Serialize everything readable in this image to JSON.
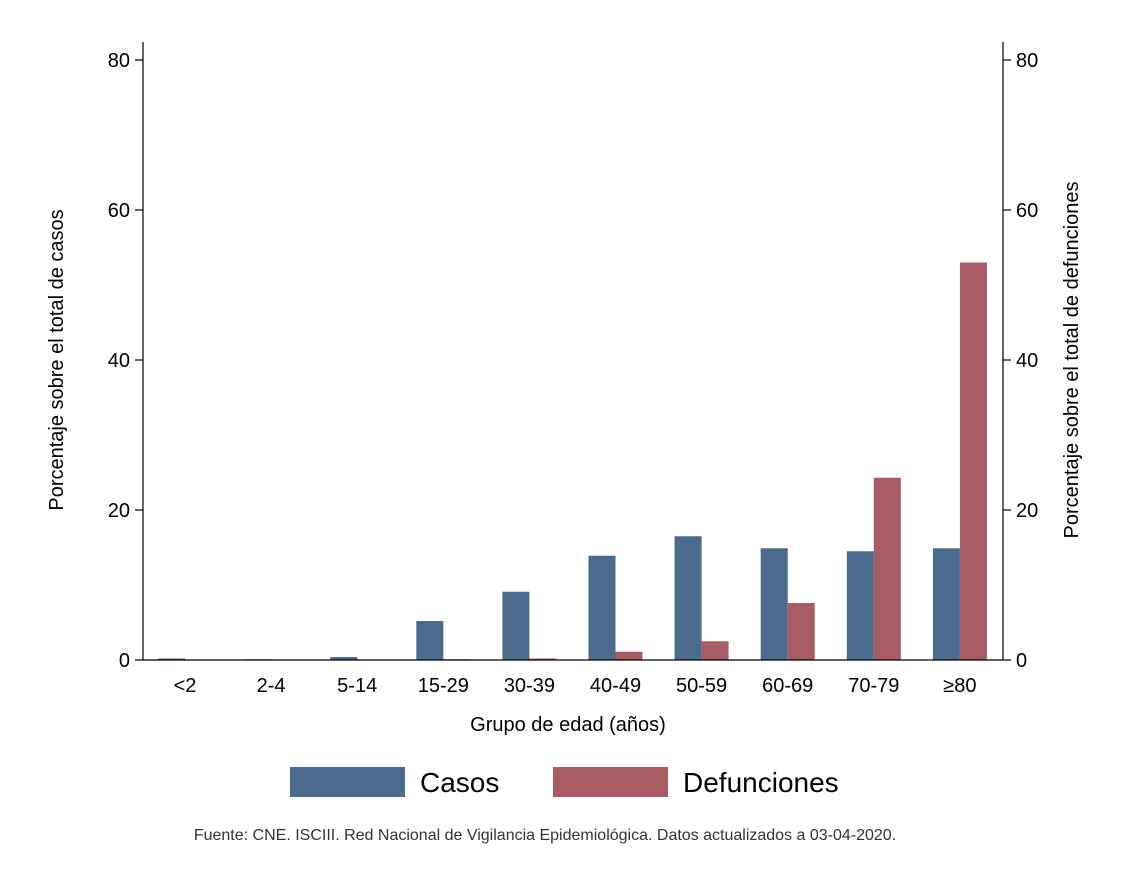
{
  "chart_data": {
    "type": "bar",
    "categories": [
      "<2",
      "2-4",
      "5-14",
      "15-29",
      "30-39",
      "40-49",
      "50-59",
      "60-69",
      "70-79",
      "≥80"
    ],
    "series": [
      {
        "name": "Casos",
        "color": "#4a6b8e",
        "values": [
          0.2,
          0.1,
          0.4,
          5.2,
          9.1,
          13.9,
          16.5,
          14.9,
          14.5,
          14.9
        ]
      },
      {
        "name": "Defunciones",
        "color": "#a85b62",
        "values": [
          0.0,
          0.0,
          0.0,
          0.1,
          0.2,
          1.1,
          2.5,
          7.6,
          24.3,
          53.0
        ]
      }
    ],
    "xlabel": "Grupo de edad (años)",
    "ylabel_left": "Porcentaje sobre el total de casos",
    "ylabel_right": "Porcentaje sobre el total de defunciones",
    "ylim": [
      0,
      80
    ],
    "yticks": [
      0,
      20,
      40,
      60,
      80
    ],
    "grid": false,
    "legend_position": "bottom",
    "source_note": "Fuente: CNE. ISCIII. Red Nacional de Vigilancia Epidemiológica. Datos actualizados a 03-04-2020."
  }
}
